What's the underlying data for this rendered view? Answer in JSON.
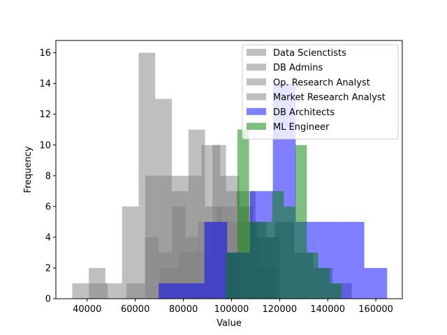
{
  "chart_data": {
    "type": "histogram",
    "title": "",
    "xlabel": "Value",
    "ylabel": "Frequency",
    "xlim": [
      27000,
      171000
    ],
    "ylim": [
      0,
      16.8
    ],
    "xticks": [
      40000,
      60000,
      80000,
      100000,
      120000,
      140000,
      160000
    ],
    "xtick_labels": [
      "40000",
      "60000",
      "80000",
      "100000",
      "120000",
      "140000",
      "160000"
    ],
    "yticks": [
      0,
      2,
      4,
      6,
      8,
      10,
      12,
      14,
      16
    ],
    "ytick_labels": [
      "0",
      "2",
      "4",
      "6",
      "8",
      "10",
      "12",
      "14",
      "16"
    ],
    "grid": false,
    "legend_position": "upper-right",
    "series": [
      {
        "name": "Data Scienctists",
        "color": "#808080",
        "opacity": 0.5,
        "bins": [
          {
            "x0": 33800,
            "x1": 40700,
            "count": 1
          },
          {
            "x0": 40700,
            "x1": 47600,
            "count": 2
          },
          {
            "x0": 47600,
            "x1": 54500,
            "count": 1
          },
          {
            "x0": 54500,
            "x1": 61400,
            "count": 6
          },
          {
            "x0": 61400,
            "x1": 68300,
            "count": 16
          },
          {
            "x0": 68300,
            "x1": 75200,
            "count": 13
          },
          {
            "x0": 75200,
            "x1": 82100,
            "count": 7
          },
          {
            "x0": 82100,
            "x1": 89000,
            "count": 11
          },
          {
            "x0": 89000,
            "x1": 95900,
            "count": 6
          },
          {
            "x0": 95900,
            "x1": 102800,
            "count": 5
          }
        ]
      },
      {
        "name": "DB Admins",
        "color": "#808080",
        "opacity": 0.5,
        "bins": [
          {
            "x0": 40700,
            "x1": 48500,
            "count": 1
          },
          {
            "x0": 48500,
            "x1": 56300,
            "count": 0
          },
          {
            "x0": 56300,
            "x1": 64100,
            "count": 1
          },
          {
            "x0": 64100,
            "x1": 71900,
            "count": 8
          },
          {
            "x0": 71900,
            "x1": 79700,
            "count": 8
          },
          {
            "x0": 79700,
            "x1": 87500,
            "count": 8
          },
          {
            "x0": 87500,
            "x1": 95300,
            "count": 10
          },
          {
            "x0": 95300,
            "x1": 103100,
            "count": 8
          },
          {
            "x0": 103100,
            "x1": 110900,
            "count": 5
          },
          {
            "x0": 110900,
            "x1": 118700,
            "count": 2
          }
        ]
      },
      {
        "name": "Op. Research Analyst",
        "color": "#808080",
        "opacity": 0.5,
        "bins": [
          {
            "x0": 64100,
            "x1": 69700,
            "count": 4
          },
          {
            "x0": 69700,
            "x1": 75300,
            "count": 3
          },
          {
            "x0": 75300,
            "x1": 80900,
            "count": 6
          },
          {
            "x0": 80900,
            "x1": 86500,
            "count": 4
          },
          {
            "x0": 86500,
            "x1": 92100,
            "count": 3
          },
          {
            "x0": 92100,
            "x1": 97700,
            "count": 10
          },
          {
            "x0": 97700,
            "x1": 103300,
            "count": 7
          },
          {
            "x0": 103300,
            "x1": 108900,
            "count": 6
          },
          {
            "x0": 108900,
            "x1": 114500,
            "count": 5
          },
          {
            "x0": 114500,
            "x1": 120100,
            "count": 4
          }
        ]
      },
      {
        "name": "Market Research Analyst",
        "color": "#808080",
        "opacity": 0.5,
        "bins": [
          {
            "x0": 70000,
            "x1": 78000,
            "count": 2
          },
          {
            "x0": 78000,
            "x1": 86000,
            "count": 3
          },
          {
            "x0": 86000,
            "x1": 94000,
            "count": 5
          },
          {
            "x0": 94000,
            "x1": 102000,
            "count": 6
          },
          {
            "x0": 102000,
            "x1": 110000,
            "count": 7
          },
          {
            "x0": 110000,
            "x1": 118000,
            "count": 4
          },
          {
            "x0": 118000,
            "x1": 126000,
            "count": 5
          },
          {
            "x0": 126000,
            "x1": 134000,
            "count": 3
          },
          {
            "x0": 134000,
            "x1": 142000,
            "count": 2
          },
          {
            "x0": 142000,
            "x1": 150000,
            "count": 1
          }
        ]
      },
      {
        "name": "DB Architects",
        "color": "#0000ff",
        "opacity": 0.5,
        "bins": [
          {
            "x0": 69700,
            "x1": 79200,
            "count": 1
          },
          {
            "x0": 79200,
            "x1": 88700,
            "count": 1
          },
          {
            "x0": 88700,
            "x1": 98200,
            "count": 5
          },
          {
            "x0": 98200,
            "x1": 107700,
            "count": 3
          },
          {
            "x0": 107700,
            "x1": 117200,
            "count": 7
          },
          {
            "x0": 117200,
            "x1": 126700,
            "count": 14
          },
          {
            "x0": 126700,
            "x1": 136200,
            "count": 5
          },
          {
            "x0": 136200,
            "x1": 145700,
            "count": 5
          },
          {
            "x0": 145700,
            "x1": 155200,
            "count": 5
          },
          {
            "x0": 155200,
            "x1": 164700,
            "count": 2
          }
        ]
      },
      {
        "name": "ML Engineer",
        "color": "#008000",
        "opacity": 0.5,
        "bins": [
          {
            "x0": 97700,
            "x1": 102500,
            "count": 3
          },
          {
            "x0": 102500,
            "x1": 107300,
            "count": 11
          },
          {
            "x0": 107300,
            "x1": 112100,
            "count": 5
          },
          {
            "x0": 112100,
            "x1": 116900,
            "count": 5
          },
          {
            "x0": 116900,
            "x1": 121700,
            "count": 7
          },
          {
            "x0": 121700,
            "x1": 126500,
            "count": 6
          },
          {
            "x0": 126500,
            "x1": 131300,
            "count": 10
          },
          {
            "x0": 131300,
            "x1": 136100,
            "count": 3
          },
          {
            "x0": 136100,
            "x1": 140900,
            "count": 2
          },
          {
            "x0": 140900,
            "x1": 145700,
            "count": 1
          }
        ]
      }
    ]
  }
}
